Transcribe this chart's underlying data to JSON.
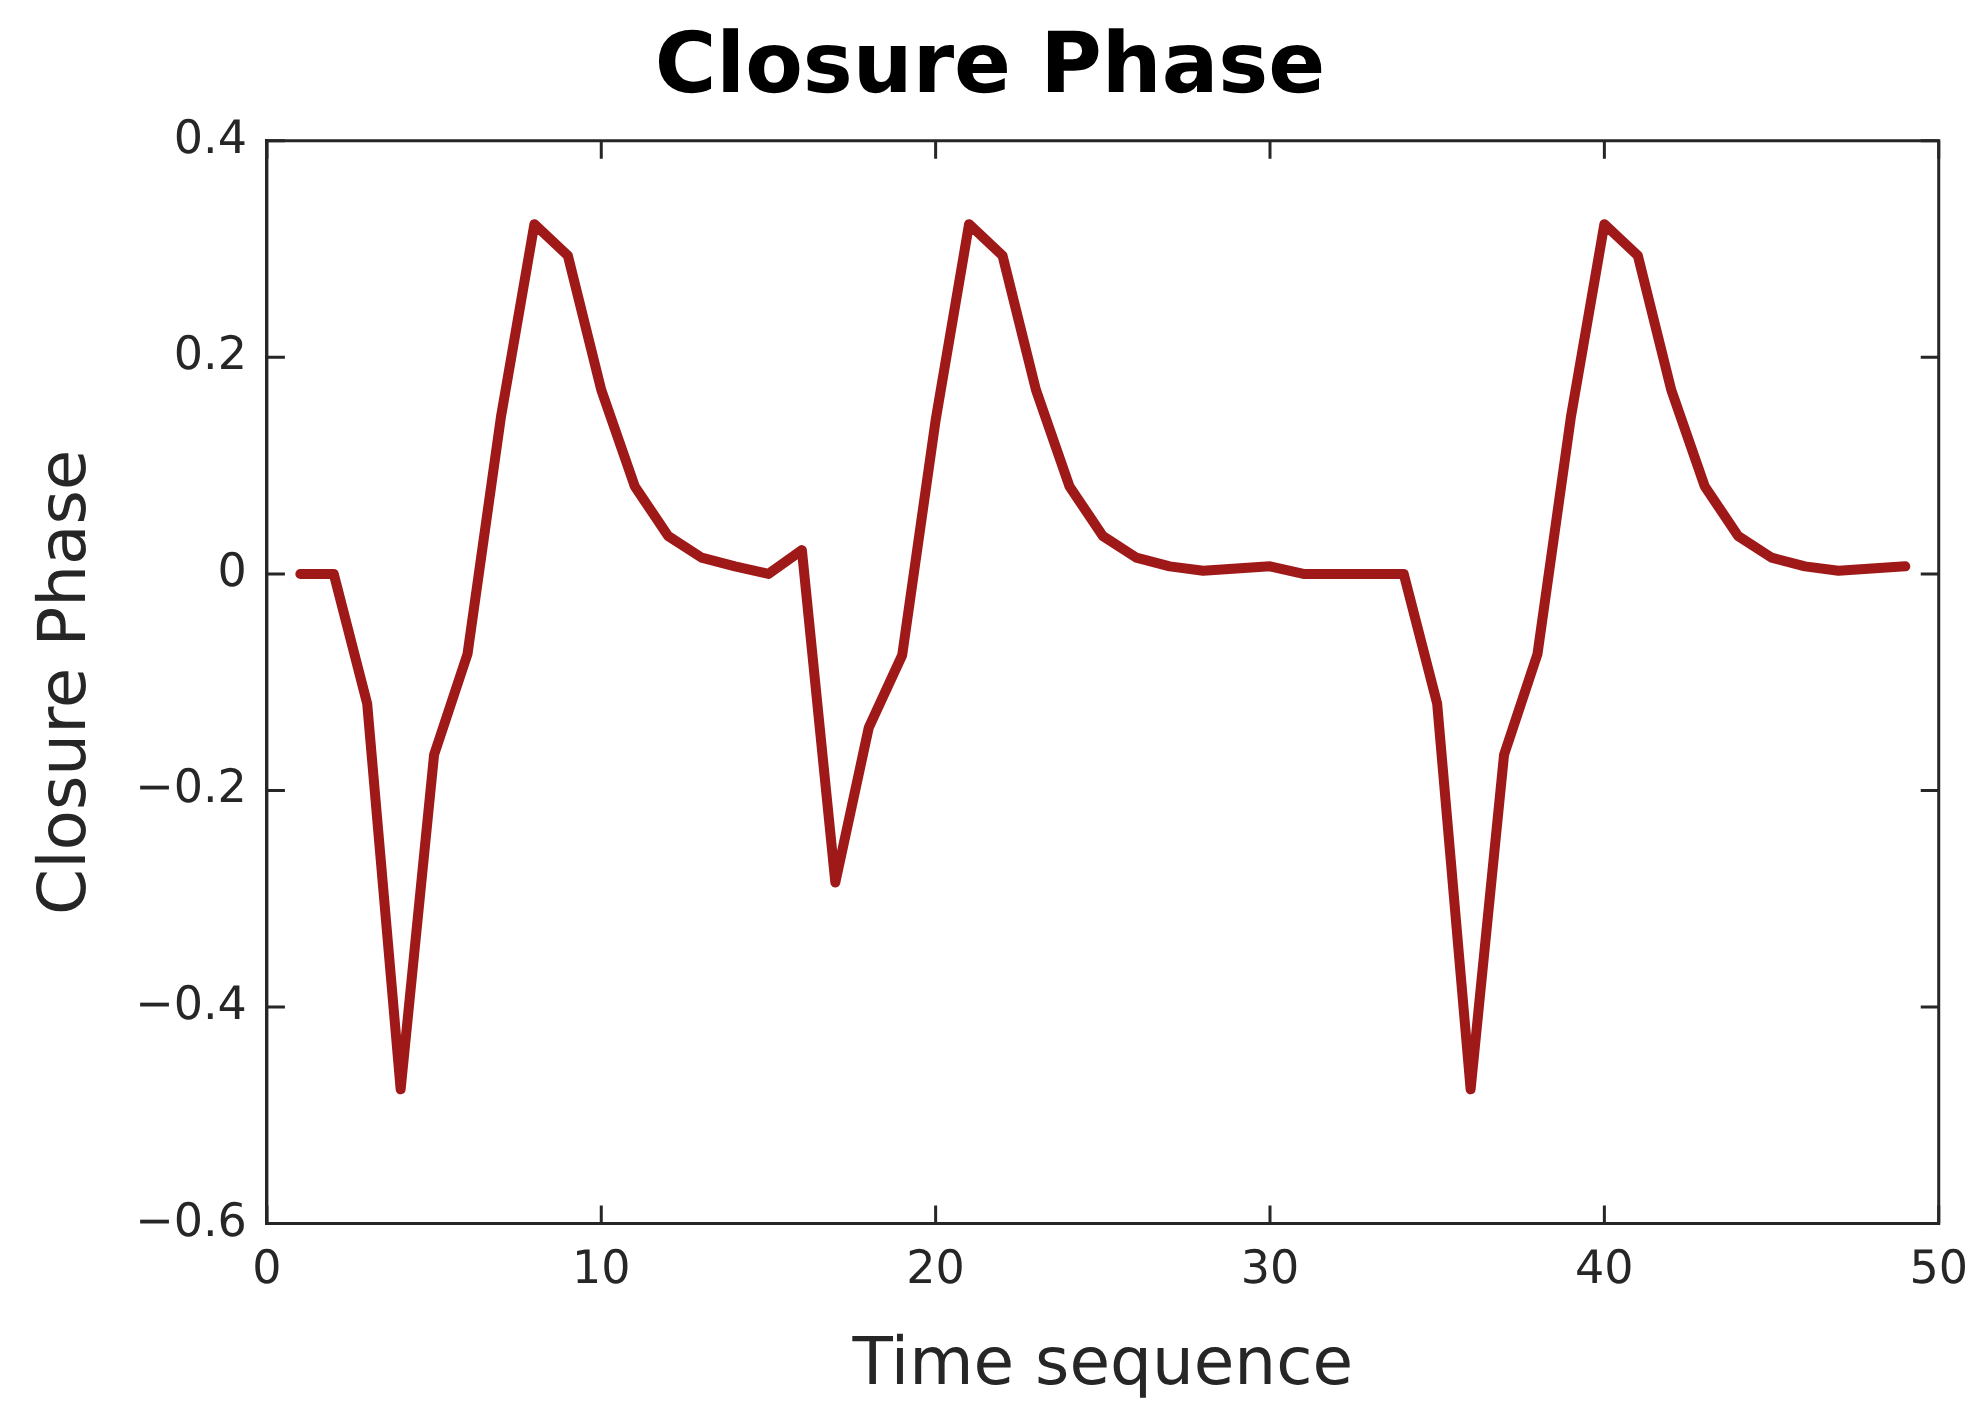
{
  "chart_data": {
    "type": "line",
    "title": "Closure Phase",
    "xlabel": "Time sequence",
    "ylabel": "Closure Phase",
    "x": [
      1,
      2,
      3,
      4,
      5,
      6,
      7,
      8,
      9,
      10,
      11,
      12,
      13,
      14,
      15,
      16,
      17,
      18,
      19,
      20,
      21,
      22,
      23,
      24,
      25,
      26,
      27,
      28,
      29,
      30,
      31,
      32,
      33,
      34,
      35,
      36,
      37,
      38,
      39,
      40,
      41,
      42,
      43,
      44,
      45,
      46,
      47,
      48,
      49
    ],
    "series": [
      {
        "color": "#a01919",
        "values": [
          0,
          0,
          -0.12,
          -0.476,
          -0.167,
          -0.074,
          0.145,
          0.323,
          0.294,
          0.17,
          0.081,
          0.035,
          0.015,
          0.007,
          0,
          0.022,
          -0.285,
          -0.142,
          -0.075,
          0.142,
          0.323,
          0.294,
          0.17,
          0.081,
          0.035,
          0.015,
          0.007,
          0.003,
          0.005,
          0.007,
          0,
          0,
          0,
          0,
          -0.12,
          -0.476,
          -0.167,
          -0.074,
          0.145,
          0.323,
          0.294,
          0.17,
          0.081,
          0.035,
          0.015,
          0.007,
          0.003,
          0.005,
          0.007
        ]
      }
    ],
    "xlim": [
      0,
      50
    ],
    "xticks": [
      0,
      10,
      20,
      30,
      40,
      50
    ],
    "ylim": [
      -0.6,
      0.4
    ],
    "yticks": [
      -0.6,
      -0.4,
      -0.2,
      0,
      0.2,
      0.4
    ],
    "grid": false,
    "legend": false,
    "marker": "none",
    "line_style": "solid"
  }
}
